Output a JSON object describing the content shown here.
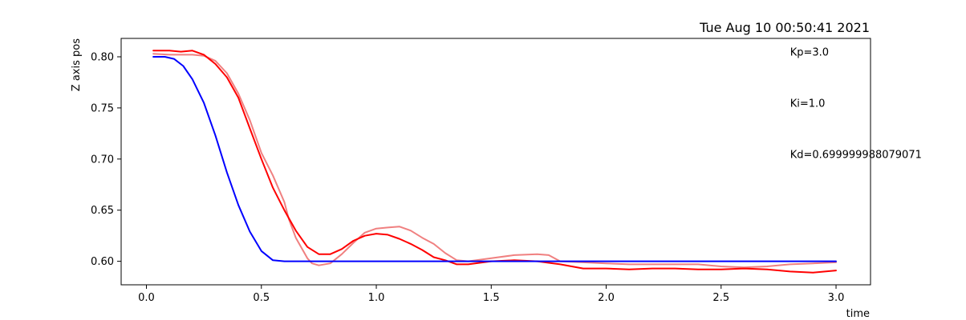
{
  "chart_data": {
    "type": "line",
    "title": "Tue Aug 10 00:50:41 2021",
    "xlabel": "time",
    "ylabel": "Z axis pos",
    "xlim": [
      -0.11,
      3.15
    ],
    "ylim": [
      0.577,
      0.818
    ],
    "xticks": [
      0.0,
      0.5,
      1.0,
      1.5,
      2.0,
      2.5,
      3.0
    ],
    "xtick_labels": [
      "0.0",
      "0.5",
      "1.0",
      "1.5",
      "2.0",
      "2.5",
      "3.0"
    ],
    "yticks": [
      0.6,
      0.65,
      0.7,
      0.75,
      0.8
    ],
    "ytick_labels": [
      "0.60",
      "0.65",
      "0.70",
      "0.75",
      "0.80"
    ],
    "grid": false,
    "annotations": [
      {
        "text": "Kp=3.0",
        "x": 2.8,
        "y": 0.801
      },
      {
        "text": "Ki=1.0",
        "x": 2.8,
        "y": 0.751
      },
      {
        "text": "Kd=0.699999988079071",
        "x": 2.8,
        "y": 0.701
      }
    ],
    "series": [
      {
        "color": "#0000ff",
        "x": [
          0.03,
          0.08,
          0.12,
          0.16,
          0.2,
          0.25,
          0.3,
          0.35,
          0.4,
          0.45,
          0.5,
          0.55,
          0.6,
          0.7,
          0.8,
          1.0,
          1.2,
          1.5,
          2.0,
          2.5,
          3.0
        ],
        "y": [
          0.8,
          0.8,
          0.798,
          0.791,
          0.778,
          0.755,
          0.723,
          0.687,
          0.655,
          0.629,
          0.61,
          0.601,
          0.6,
          0.6,
          0.6,
          0.6,
          0.6,
          0.6,
          0.6,
          0.6,
          0.6
        ]
      },
      {
        "color": "#f08080",
        "x": [
          0.03,
          0.1,
          0.15,
          0.2,
          0.25,
          0.3,
          0.35,
          0.4,
          0.45,
          0.5,
          0.55,
          0.6,
          0.62,
          0.65,
          0.7,
          0.72,
          0.75,
          0.8,
          0.85,
          0.9,
          0.95,
          1.0,
          1.05,
          1.1,
          1.15,
          1.2,
          1.25,
          1.3,
          1.35,
          1.4,
          1.5,
          1.6,
          1.7,
          1.75,
          1.8,
          1.9,
          2.0,
          2.1,
          2.2,
          2.3,
          2.4,
          2.5,
          2.6,
          2.7,
          2.8,
          2.9,
          3.0
        ],
        "y": [
          0.803,
          0.802,
          0.802,
          0.802,
          0.801,
          0.796,
          0.784,
          0.764,
          0.738,
          0.706,
          0.684,
          0.658,
          0.641,
          0.623,
          0.603,
          0.598,
          0.596,
          0.598,
          0.607,
          0.618,
          0.628,
          0.632,
          0.633,
          0.634,
          0.63,
          0.623,
          0.617,
          0.608,
          0.601,
          0.6,
          0.603,
          0.606,
          0.607,
          0.606,
          0.6,
          0.599,
          0.598,
          0.597,
          0.597,
          0.597,
          0.597,
          0.595,
          0.594,
          0.595,
          0.597,
          0.598,
          0.599
        ]
      },
      {
        "color": "#ff0000",
        "x": [
          0.03,
          0.1,
          0.15,
          0.2,
          0.25,
          0.3,
          0.35,
          0.4,
          0.45,
          0.5,
          0.55,
          0.6,
          0.65,
          0.7,
          0.75,
          0.8,
          0.85,
          0.9,
          0.95,
          1.0,
          1.05,
          1.1,
          1.15,
          1.2,
          1.25,
          1.3,
          1.35,
          1.4,
          1.5,
          1.6,
          1.7,
          1.8,
          1.9,
          2.0,
          2.1,
          2.2,
          2.3,
          2.4,
          2.5,
          2.6,
          2.7,
          2.8,
          2.9,
          3.0
        ],
        "y": [
          0.806,
          0.806,
          0.805,
          0.806,
          0.802,
          0.793,
          0.78,
          0.76,
          0.73,
          0.7,
          0.672,
          0.65,
          0.63,
          0.614,
          0.607,
          0.607,
          0.612,
          0.62,
          0.625,
          0.627,
          0.626,
          0.622,
          0.617,
          0.611,
          0.604,
          0.601,
          0.597,
          0.597,
          0.6,
          0.601,
          0.6,
          0.597,
          0.593,
          0.593,
          0.592,
          0.593,
          0.593,
          0.592,
          0.592,
          0.593,
          0.592,
          0.59,
          0.589,
          0.591
        ]
      }
    ]
  }
}
